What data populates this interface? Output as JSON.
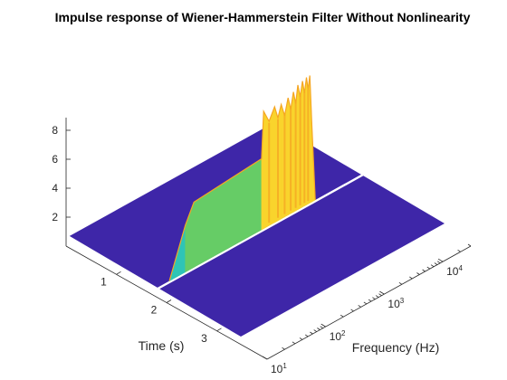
{
  "chart_data": {
    "type": "surface",
    "title": "Impulse response of Wiener-Hammerstein Filter Without Nonlinearity",
    "xlabel": "Frequency (Hz)",
    "ylabel": "Time (s)",
    "zlabel": "",
    "x_scale": "log",
    "xlim": [
      10,
      30000
    ],
    "ylim": [
      0,
      4
    ],
    "zlim": [
      0,
      8.5
    ],
    "x_ticks": [
      {
        "value": 10,
        "base": "10",
        "exp": "1"
      },
      {
        "value": 100,
        "base": "10",
        "exp": "2"
      },
      {
        "value": 1000,
        "base": "10",
        "exp": "3"
      },
      {
        "value": 10000,
        "base": "10",
        "exp": "4"
      }
    ],
    "y_ticks": [
      1,
      2,
      3
    ],
    "z_ticks": [
      2,
      4,
      6,
      8
    ],
    "colormap": "parula",
    "colors": {
      "floor": "#3e26a8",
      "low_cyan": "#2ec4b6",
      "mid_green": "#66cc66",
      "peak_yellow": "#f9d42c",
      "ridge_orange": "#f5a623"
    },
    "response_ridge": {
      "time_s": 2.1,
      "plateau_start_hz": 30,
      "plateau_end_hz": 600,
      "plateau_level": 4.5,
      "peaks": [
        {
          "frequency_hz": 650,
          "value": 8.1
        },
        {
          "frequency_hz": 1000,
          "value": 8.0
        },
        {
          "frequency_hz": 1300,
          "value": 7.9
        },
        {
          "frequency_hz": 1700,
          "value": 8.1
        },
        {
          "frequency_hz": 2100,
          "value": 8.3
        },
        {
          "frequency_hz": 2500,
          "value": 8.6
        },
        {
          "frequency_hz": 3000,
          "value": 8.7
        },
        {
          "frequency_hz": 3500,
          "value": 8.8
        },
        {
          "frequency_hz": 4000,
          "value": 8.8
        }
      ],
      "cutoff_hz": 4300
    }
  }
}
